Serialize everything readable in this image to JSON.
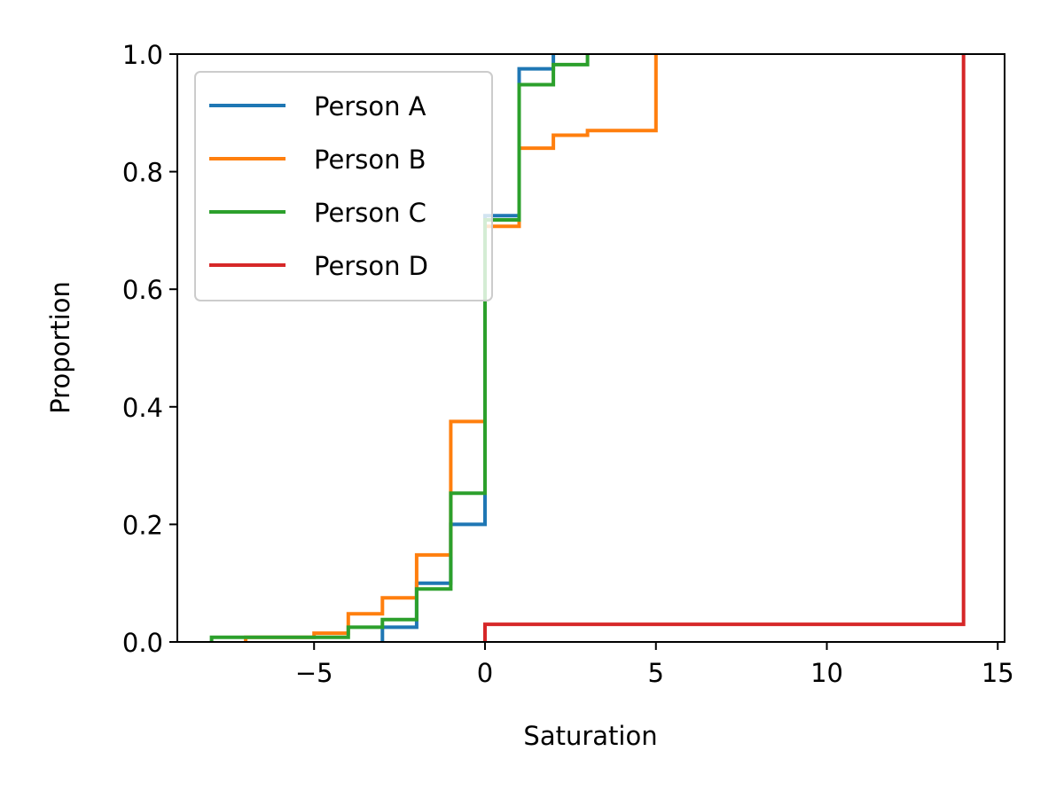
{
  "chart_data": {
    "type": "line",
    "step": true,
    "title": "",
    "xlabel": "Saturation",
    "ylabel": "Proportion",
    "xlim": [
      -9,
      15.2
    ],
    "ylim": [
      0,
      1
    ],
    "xticks": [
      -5,
      0,
      5,
      10,
      15
    ],
    "xtick_labels": [
      "−5",
      "0",
      "5",
      "10",
      "15"
    ],
    "yticks": [
      0,
      0.2,
      0.4,
      0.6,
      0.8,
      1.0
    ],
    "ytick_labels": [
      "0.0",
      "0.2",
      "0.4",
      "0.6",
      "0.8",
      "1.0"
    ],
    "grid": false,
    "legend_position": "top-left",
    "series": [
      {
        "name": "Person A",
        "color": "#1f77b4",
        "x": [
          -3,
          -2,
          -1,
          0,
          1,
          2
        ],
        "y": [
          0.025,
          0.1,
          0.2,
          0.725,
          0.975,
          1.0
        ]
      },
      {
        "name": "Person B",
        "color": "#ff7f0e",
        "x": [
          -7,
          -5,
          -4,
          -3,
          -2,
          -1,
          0,
          1,
          2,
          3,
          5
        ],
        "y": [
          0.008,
          0.015,
          0.048,
          0.075,
          0.148,
          0.375,
          0.707,
          0.84,
          0.862,
          0.87,
          1.0
        ]
      },
      {
        "name": "Person C",
        "color": "#2ca02c",
        "x": [
          -8,
          -4,
          -3,
          -2,
          -1,
          0,
          1,
          2,
          3
        ],
        "y": [
          0.008,
          0.025,
          0.038,
          0.09,
          0.253,
          0.718,
          0.948,
          0.982,
          1.0
        ]
      },
      {
        "name": "Person D",
        "color": "#d62728",
        "x": [
          0,
          14
        ],
        "y": [
          0.03,
          1.0
        ]
      }
    ]
  }
}
